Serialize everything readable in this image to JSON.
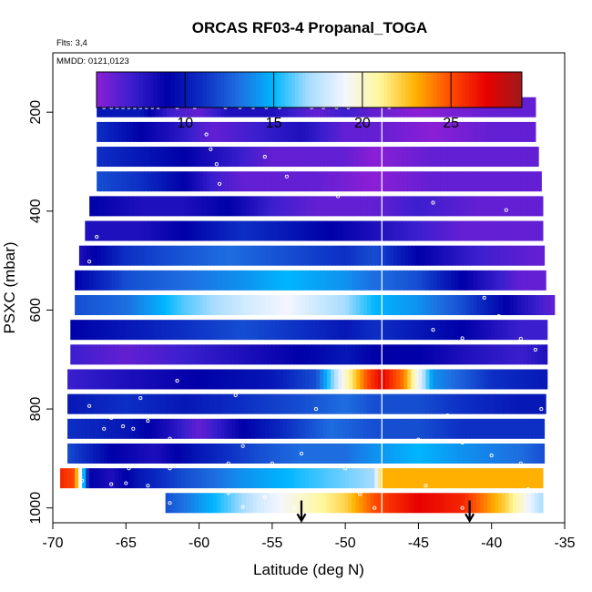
{
  "chart_data": {
    "type": "heatmap",
    "title": "ORCAS RF03-4 Propanal_TOGA",
    "flights_note": "Flts: 3,4",
    "dates_note": "MMDD: 0121,0123",
    "xlabel": "Latitude (deg N)",
    "ylabel": "PSXC (mbar)",
    "xlim": [
      -70,
      -35
    ],
    "ylim": [
      1030,
      80
    ],
    "x_ticks": [
      -70,
      -65,
      -60,
      -55,
      -50,
      -45,
      -40,
      -35
    ],
    "x_tick_labels": [
      "-70",
      "-65",
      "-60",
      "-55",
      "-50",
      "-45",
      "-40",
      "-35"
    ],
    "y_ticks": [
      200,
      400,
      600,
      800,
      1000
    ],
    "y_tick_labels": [
      "200",
      "400",
      "600",
      "800",
      "1000"
    ],
    "colorbar": {
      "min": 5,
      "max": 29,
      "ticks": [
        10,
        15,
        20,
        25
      ],
      "tick_labels": [
        "10",
        "15",
        "20",
        "25"
      ],
      "colors": [
        "#8b1fd6",
        "#3b1fcf",
        "#0000a8",
        "#0d2fc4",
        "#1e6de0",
        "#00b6ff",
        "#a9dcff",
        "#f4f6ff",
        "#fff79a",
        "#ffb000",
        "#ff4a00",
        "#e80000",
        "#9e1a1a"
      ]
    },
    "vertical_line_lat": -47.5,
    "arrows_lat": [
      -53,
      -41.5
    ],
    "rows": [
      {
        "p": 190,
        "lat_min": -67,
        "lat_max": -37,
        "pts": [
          [
            -67,
            10
          ],
          [
            -64,
            10
          ],
          [
            -62,
            7
          ],
          [
            -60,
            6
          ],
          [
            -58,
            8
          ],
          [
            -55,
            8
          ],
          [
            -52,
            6
          ],
          [
            -50,
            7
          ],
          [
            -48,
            6
          ],
          [
            -45,
            5
          ],
          [
            -40,
            6
          ],
          [
            -37,
            6
          ]
        ]
      },
      {
        "p": 240,
        "lat_min": -67,
        "lat_max": -37,
        "pts": [
          [
            -67,
            11
          ],
          [
            -64,
            9
          ],
          [
            -62,
            8
          ],
          [
            -59,
            6
          ],
          [
            -56,
            7
          ],
          [
            -53,
            8
          ],
          [
            -50,
            6
          ],
          [
            -48,
            6
          ],
          [
            -44,
            5
          ],
          [
            -40,
            6
          ],
          [
            -37,
            6
          ]
        ]
      },
      {
        "p": 290,
        "lat_min": -67,
        "lat_max": -36.8,
        "pts": [
          [
            -67,
            11
          ],
          [
            -64,
            10
          ],
          [
            -61,
            9
          ],
          [
            -59,
            8
          ],
          [
            -57,
            7
          ],
          [
            -55,
            6
          ],
          [
            -50,
            6
          ],
          [
            -48,
            5
          ],
          [
            -44,
            6
          ],
          [
            -40,
            6
          ],
          [
            -37,
            6
          ]
        ]
      },
      {
        "p": 340,
        "lat_min": -67,
        "lat_max": -36.6,
        "pts": [
          [
            -67,
            12
          ],
          [
            -64,
            11
          ],
          [
            -61,
            9
          ],
          [
            -59,
            7
          ],
          [
            -57,
            6
          ],
          [
            -52,
            6
          ],
          [
            -48,
            5
          ],
          [
            -44,
            6
          ],
          [
            -40,
            6
          ],
          [
            -37,
            6
          ]
        ]
      },
      {
        "p": 390,
        "lat_min": -67.5,
        "lat_max": -36.5,
        "pts": [
          [
            -67.5,
            9
          ],
          [
            -64,
            8
          ],
          [
            -61,
            8
          ],
          [
            -58,
            9
          ],
          [
            -55,
            7
          ],
          [
            -52,
            6
          ],
          [
            -48,
            6
          ],
          [
            -45,
            7
          ],
          [
            -41,
            6
          ],
          [
            -37,
            6
          ]
        ]
      },
      {
        "p": 440,
        "lat_min": -67.8,
        "lat_max": -36.5,
        "pts": [
          [
            -67.8,
            8
          ],
          [
            -64,
            8
          ],
          [
            -61,
            9
          ],
          [
            -57,
            11
          ],
          [
            -54,
            10
          ],
          [
            -51,
            9
          ],
          [
            -48,
            8
          ],
          [
            -45,
            7
          ],
          [
            -42,
            6
          ],
          [
            -37,
            6
          ]
        ]
      },
      {
        "p": 490,
        "lat_min": -68.2,
        "lat_max": -36.4,
        "pts": [
          [
            -68.2,
            8
          ],
          [
            -65,
            11
          ],
          [
            -62,
            12
          ],
          [
            -58,
            13
          ],
          [
            -54,
            12
          ],
          [
            -50,
            11
          ],
          [
            -48,
            12
          ],
          [
            -45,
            9
          ],
          [
            -41,
            7
          ],
          [
            -37,
            6
          ]
        ]
      },
      {
        "p": 540,
        "lat_min": -68.5,
        "lat_max": -36.3,
        "pts": [
          [
            -68.5,
            9
          ],
          [
            -65,
            12
          ],
          [
            -61,
            13
          ],
          [
            -57,
            14
          ],
          [
            -54,
            15
          ],
          [
            -50,
            14
          ],
          [
            -48,
            13
          ],
          [
            -45,
            12
          ],
          [
            -42,
            9
          ],
          [
            -38,
            6
          ],
          [
            -36.3,
            6
          ]
        ]
      },
      {
        "p": 590,
        "lat_min": -68.5,
        "lat_max": -35.7,
        "pts": [
          [
            -68.5,
            12
          ],
          [
            -65,
            13
          ],
          [
            -61,
            16
          ],
          [
            -57,
            18
          ],
          [
            -54,
            19
          ],
          [
            -50,
            17
          ],
          [
            -48,
            15
          ],
          [
            -45,
            14
          ],
          [
            -42,
            12
          ],
          [
            -38,
            8
          ],
          [
            -35.7,
            6
          ]
        ]
      },
      {
        "p": 640,
        "lat_min": -68.8,
        "lat_max": -36.2,
        "pts": [
          [
            -68.8,
            9
          ],
          [
            -65,
            10
          ],
          [
            -61,
            11
          ],
          [
            -57,
            12
          ],
          [
            -53,
            11
          ],
          [
            -50,
            10
          ],
          [
            -48,
            11
          ],
          [
            -45,
            10
          ],
          [
            -42,
            9
          ],
          [
            -38,
            7
          ],
          [
            -36.2,
            7
          ]
        ]
      },
      {
        "p": 690,
        "lat_min": -68.8,
        "lat_max": -36.2,
        "pts": [
          [
            -68.8,
            7
          ],
          [
            -65,
            6
          ],
          [
            -61,
            7
          ],
          [
            -57,
            8
          ],
          [
            -53,
            9
          ],
          [
            -50,
            10
          ],
          [
            -48,
            9
          ],
          [
            -45,
            9
          ],
          [
            -42,
            8
          ],
          [
            -38,
            7
          ],
          [
            -36.2,
            8
          ]
        ]
      },
      {
        "p": 740,
        "lat_min": -69,
        "lat_max": -36.2,
        "pts": [
          [
            -69,
            7
          ],
          [
            -65,
            8
          ],
          [
            -60,
            9
          ],
          [
            -55,
            10
          ],
          [
            -52,
            12
          ],
          [
            -50,
            20
          ],
          [
            -48.5,
            25
          ],
          [
            -47.5,
            27
          ],
          [
            -46,
            24
          ],
          [
            -44,
            14
          ],
          [
            -40,
            11
          ],
          [
            -36.2,
            10
          ]
        ]
      },
      {
        "p": 790,
        "lat_min": -69,
        "lat_max": -36.3,
        "pts": [
          [
            -69,
            10
          ],
          [
            -65,
            11
          ],
          [
            -61,
            10
          ],
          [
            -57,
            11
          ],
          [
            -53,
            12
          ],
          [
            -50,
            13
          ],
          [
            -48,
            12
          ],
          [
            -45,
            12
          ],
          [
            -42,
            11
          ],
          [
            -38,
            10
          ],
          [
            -36.3,
            10
          ]
        ]
      },
      {
        "p": 840,
        "lat_min": -69,
        "lat_max": -36.4,
        "pts": [
          [
            -69,
            11
          ],
          [
            -65,
            10
          ],
          [
            -62,
            8
          ],
          [
            -60,
            6
          ],
          [
            -57,
            9
          ],
          [
            -54,
            11
          ],
          [
            -51,
            13
          ],
          [
            -48,
            12
          ],
          [
            -45,
            12
          ],
          [
            -42,
            11
          ],
          [
            -38,
            11
          ],
          [
            -36.4,
            11
          ]
        ]
      },
      {
        "p": 890,
        "lat_min": -69,
        "lat_max": -36.4,
        "pts": [
          [
            -69,
            12
          ],
          [
            -66,
            9
          ],
          [
            -63,
            8
          ],
          [
            -60,
            10
          ],
          [
            -56,
            12
          ],
          [
            -53,
            13
          ],
          [
            -50,
            13
          ],
          [
            -48,
            14
          ],
          [
            -45,
            15
          ],
          [
            -42,
            14
          ],
          [
            -38,
            13
          ],
          [
            -36.4,
            12
          ]
        ]
      },
      {
        "p": 940,
        "lat_min": -69.5,
        "lat_max": -36.5,
        "pts": [
          [
            -69.5,
            26
          ],
          [
            -68.5,
            25
          ],
          [
            -67.5,
            9
          ],
          [
            -66,
            8
          ],
          [
            -64,
            10
          ],
          [
            -61,
            12
          ],
          [
            -57,
            14
          ],
          [
            -54,
            15
          ],
          [
            -51,
            16
          ],
          [
            -48,
            17
          ],
          [
            -47.5,
            23
          ],
          [
            -45,
            23
          ],
          [
            -42,
            23
          ],
          [
            -38,
            23
          ],
          [
            -36.5,
            23
          ]
        ]
      },
      {
        "p": 990,
        "lat_min": -62.3,
        "lat_max": -36.5,
        "pts": [
          [
            -62.3,
            12
          ],
          [
            -59,
            15
          ],
          [
            -56,
            18
          ],
          [
            -53,
            20
          ],
          [
            -50,
            22
          ],
          [
            -48,
            25
          ],
          [
            -45,
            27
          ],
          [
            -42,
            26
          ],
          [
            -39,
            22
          ],
          [
            -37,
            18
          ],
          [
            -36.5,
            17
          ]
        ]
      }
    ],
    "flight_points": [
      [
        -66.5,
        190
      ],
      [
        -66,
        190
      ],
      [
        -65.6,
        190
      ],
      [
        -65.2,
        190
      ],
      [
        -64.8,
        190
      ],
      [
        -64.4,
        190
      ],
      [
        -64,
        190
      ],
      [
        -63.6,
        190
      ],
      [
        -63.2,
        190
      ],
      [
        -62.8,
        190
      ],
      [
        -61.5,
        190
      ],
      [
        -60.3,
        190
      ],
      [
        -58.2,
        190
      ],
      [
        -57.2,
        190
      ],
      [
        -56.3,
        190
      ],
      [
        -55.4,
        190
      ],
      [
        -54.5,
        190
      ],
      [
        -52.3,
        190
      ],
      [
        -51.5,
        190
      ],
      [
        -50.6,
        190
      ],
      [
        -49.8,
        190
      ],
      [
        -47,
        190
      ],
      [
        -60,
        215
      ],
      [
        -59.5,
        245
      ],
      [
        -59.2,
        275
      ],
      [
        -58.8,
        305
      ],
      [
        -58.6,
        345
      ],
      [
        -55.5,
        290
      ],
      [
        -54,
        330
      ],
      [
        -50.5,
        370
      ],
      [
        -44,
        383
      ],
      [
        -39,
        398
      ],
      [
        -67,
        452
      ],
      [
        -67.5,
        502
      ],
      [
        -40.5,
        575
      ],
      [
        -39.5,
        612
      ],
      [
        -44,
        640
      ],
      [
        -42,
        657
      ],
      [
        -38,
        658
      ],
      [
        -37,
        680
      ],
      [
        -61.5,
        743
      ],
      [
        -57.5,
        772
      ],
      [
        -67.5,
        794
      ],
      [
        -64,
        778
      ],
      [
        -66,
        818
      ],
      [
        -63.5,
        824
      ],
      [
        -55,
        815
      ],
      [
        -52,
        800
      ],
      [
        -45,
        815
      ],
      [
        -43,
        813
      ],
      [
        -36.6,
        800
      ],
      [
        -66.5,
        840
      ],
      [
        -65.2,
        835
      ],
      [
        -64.5,
        840
      ],
      [
        -62,
        860
      ],
      [
        -57,
        875
      ],
      [
        -53,
        890
      ],
      [
        -45,
        862
      ],
      [
        -42,
        868
      ],
      [
        -40,
        894
      ],
      [
        -64.8,
        920
      ],
      [
        -62,
        920
      ],
      [
        -58,
        910
      ],
      [
        -55,
        910
      ],
      [
        -50,
        920
      ],
      [
        -45,
        915
      ],
      [
        -38,
        910
      ],
      [
        -68,
        945
      ],
      [
        -66,
        952
      ],
      [
        -65,
        950
      ],
      [
        -63.5,
        955
      ],
      [
        -62.5,
        966
      ],
      [
        -58,
        970
      ],
      [
        -55.5,
        978
      ],
      [
        -49,
        972
      ],
      [
        -44.5,
        955
      ],
      [
        -40,
        965
      ],
      [
        -37.5,
        962
      ],
      [
        -62,
        990
      ],
      [
        -57,
        998
      ],
      [
        -53.5,
        1000
      ],
      [
        -48,
        1000
      ],
      [
        -42,
        1000
      ]
    ]
  }
}
